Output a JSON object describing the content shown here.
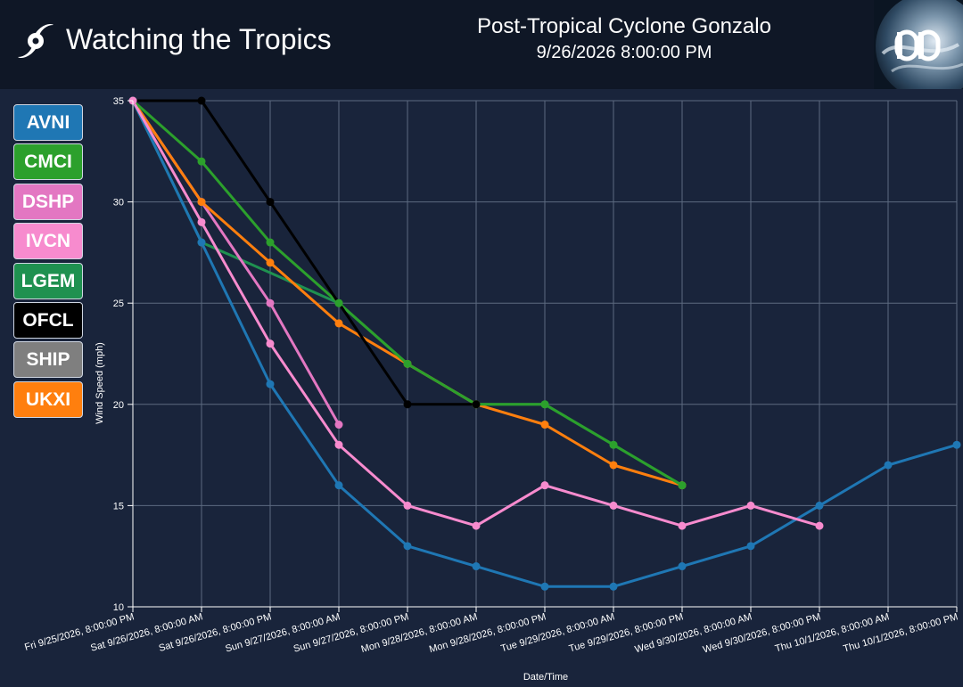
{
  "header": {
    "title": "Watching the Tropics",
    "storm_name": "Post-Tropical Cyclone Gonzalo",
    "storm_time": "9/26/2026 8:00:00 PM",
    "brand_icon": "hurricane-icon",
    "logo_icon": "dd-logo-icon"
  },
  "legend": [
    {
      "label": "AVNI",
      "color": "#1f77b4"
    },
    {
      "label": "CMCI",
      "color": "#2ca02c"
    },
    {
      "label": "DSHP",
      "color": "#e377c2"
    },
    {
      "label": "IVCN",
      "color": "#f78bce"
    },
    {
      "label": "LGEM",
      "color": "#1f9150"
    },
    {
      "label": "OFCL",
      "color": "#000000"
    },
    {
      "label": "SHIP",
      "color": "#7f7f7f"
    },
    {
      "label": "UKXI",
      "color": "#ff7f0e"
    }
  ],
  "chart_data": {
    "type": "line",
    "xlabel": "Date/Time",
    "ylabel": "Wind Speed (mph)",
    "ylim": [
      10,
      35
    ],
    "yticks": [
      10,
      15,
      20,
      25,
      30,
      35
    ],
    "grid": true,
    "categories": [
      "Fri 9/25/2026, 8:00:00 PM",
      "Sat 9/26/2026, 8:00:00 AM",
      "Sat 9/26/2026, 8:00:00 PM",
      "Sun 9/27/2026, 8:00:00 AM",
      "Sun 9/27/2026, 8:00:00 PM",
      "Mon 9/28/2026, 8:00:00 AM",
      "Mon 9/28/2026, 8:00:00 PM",
      "Tue 9/29/2026, 8:00:00 AM",
      "Tue 9/29/2026, 8:00:00 PM",
      "Wed 9/30/2026, 8:00:00 AM",
      "Wed 9/30/2026, 8:00:00 PM",
      "Thu 10/1/2026, 8:00:00 AM",
      "Thu 10/1/2026, 8:00:00 PM"
    ],
    "series": [
      {
        "name": "LGEM",
        "color": "#1f9150",
        "values": [
          35,
          28,
          null,
          25,
          22,
          20,
          20,
          18,
          16,
          null,
          null,
          null,
          null
        ]
      },
      {
        "name": "DSHP",
        "color": "#e377c2",
        "values": [
          35,
          30,
          25,
          19,
          null,
          null,
          null,
          null,
          null,
          null,
          null,
          null,
          null
        ]
      },
      {
        "name": "UKXI",
        "color": "#ff7f0e",
        "values": [
          35,
          30,
          27,
          24,
          22,
          20,
          19,
          17,
          16,
          null,
          null,
          null,
          null
        ]
      },
      {
        "name": "CMCI",
        "color": "#2ca02c",
        "values": [
          35,
          32,
          28,
          25,
          22,
          20,
          20,
          18,
          16,
          null,
          null,
          null,
          null
        ]
      },
      {
        "name": "OFCL",
        "color": "#000000",
        "values": [
          35,
          35,
          30,
          null,
          20,
          20,
          null,
          null,
          null,
          null,
          null,
          null,
          null
        ]
      },
      {
        "name": "AVNI",
        "color": "#1f77b4",
        "values": [
          35,
          28,
          21,
          16,
          13,
          12,
          11,
          11,
          12,
          13,
          15,
          17,
          18
        ]
      },
      {
        "name": "IVCN",
        "color": "#f78bce",
        "values": [
          35,
          29,
          23,
          18,
          15,
          14,
          16,
          15,
          14,
          15,
          14,
          null,
          null
        ]
      }
    ]
  }
}
